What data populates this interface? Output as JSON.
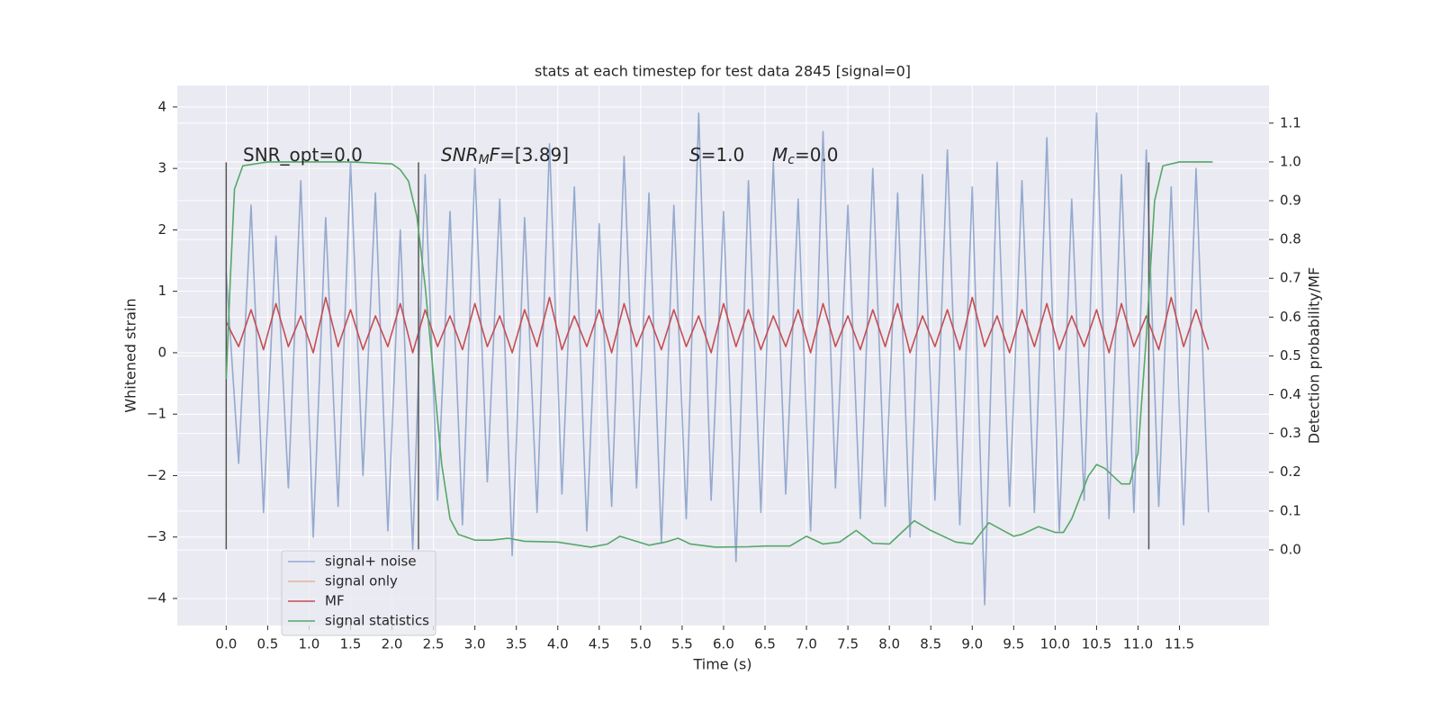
{
  "chart_data": {
    "type": "line",
    "title": "stats at each timestep for test data 2845 [signal=0]",
    "x_label": "Time (s)",
    "y_label": "Whitened strain",
    "y2_label": "Detection probability/MF",
    "xlim": [
      -0.59,
      12.58
    ],
    "ylim": [
      -4.44,
      4.35
    ],
    "y2lim": [
      -0.195,
      1.197
    ],
    "xticks": [
      {
        "value": 0,
        "label": "0.0"
      },
      0.5,
      {
        "value": 1,
        "label": "1.0"
      },
      1.5,
      {
        "value": 2,
        "label": "2.0"
      },
      2.5,
      {
        "value": 3,
        "label": "3.0"
      },
      3.5,
      {
        "value": 4,
        "label": "4.0"
      },
      4.5,
      {
        "value": 5,
        "label": "5.0"
      },
      5.5,
      {
        "value": 6,
        "label": "6.0"
      },
      6.5,
      {
        "value": 7,
        "label": "7.0"
      },
      7.5,
      {
        "value": 8,
        "label": "8.0"
      },
      8.5,
      {
        "value": 9,
        "label": "9.0"
      },
      9.5,
      {
        "value": 10,
        "label": "10.0"
      },
      10.5,
      {
        "value": 11,
        "label": "11.0"
      },
      11.5
    ],
    "yticks": [
      {
        "value": -4,
        "label": "−4"
      },
      {
        "value": -3,
        "label": "−3"
      },
      {
        "value": -2,
        "label": "−2"
      },
      {
        "value": -1,
        "label": "−1"
      },
      0,
      1,
      2,
      3,
      4
    ],
    "y2ticks": [
      {
        "value": 0,
        "label": "0.0"
      },
      0.1,
      0.2,
      0.3,
      0.4,
      0.5,
      0.6,
      0.7,
      0.8,
      0.9,
      {
        "value": 1,
        "label": "1.0"
      },
      1.1
    ],
    "grid": true,
    "legend": "lower left",
    "vlines": [
      0,
      2.32,
      11.13
    ],
    "vline_range": [
      -3.2,
      3.1
    ],
    "vline_color": "#555555",
    "annotations": [
      [
        {
          "text": "SNR_opt=0.0"
        }
      ],
      [
        {
          "text": "SNR",
          "italic": true
        },
        {
          "text": "M",
          "italic": true,
          "sub": true
        },
        {
          "text": "F",
          "italic": true
        },
        {
          "text": "=[3.89]"
        }
      ],
      [
        {
          "text": "S",
          "italic": true
        },
        {
          "text": "=1.0"
        }
      ],
      [
        {
          "text": "M",
          "italic": true
        },
        {
          "text": "c",
          "italic": true,
          "sub": true
        },
        {
          "text": "=0.0"
        }
      ]
    ],
    "x": [
      0,
      0.15,
      0.3,
      0.45,
      0.6,
      0.75,
      0.9,
      1.05,
      1.2,
      1.35,
      1.5,
      1.65,
      1.8,
      1.95,
      2.1,
      2.25,
      2.4,
      2.55,
      2.7,
      2.85,
      3,
      3.15,
      3.3,
      3.45,
      3.6,
      3.75,
      3.9,
      4.05,
      4.2,
      4.35,
      4.5,
      4.65,
      4.8,
      4.95,
      5.1,
      5.25,
      5.4,
      5.55,
      5.7,
      5.85,
      6,
      6.15,
      6.3,
      6.45,
      6.6,
      6.75,
      6.9,
      7.05,
      7.2,
      7.35,
      7.5,
      7.65,
      7.8,
      7.95,
      8.1,
      8.25,
      8.4,
      8.55,
      8.7,
      8.85,
      9,
      9.15,
      9.3,
      9.45,
      9.6,
      9.75,
      9.9,
      10.05,
      10.2,
      10.35,
      10.5,
      10.65,
      10.8,
      10.95,
      11.1,
      11.25,
      11.4,
      11.55,
      11.7,
      11.85
    ],
    "series": [
      {
        "name": "signal+ noise",
        "color": "#4c72b0",
        "alpha": 0.55,
        "values": [
          1.3,
          -1.8,
          2.4,
          -2.6,
          1.9,
          -2.2,
          2.8,
          -3.0,
          2.2,
          -2.5,
          3.1,
          -2.0,
          2.6,
          -2.9,
          2.0,
          -3.2,
          2.9,
          -2.4,
          2.3,
          -2.8,
          3.0,
          -2.1,
          2.5,
          -3.3,
          2.2,
          -2.6,
          3.4,
          -2.3,
          2.7,
          -2.9,
          2.1,
          -2.5,
          3.2,
          -2.2,
          2.6,
          -3.1,
          2.4,
          -2.7,
          3.9,
          -2.4,
          2.3,
          -3.4,
          2.8,
          -2.6,
          3.1,
          -2.3,
          2.5,
          -2.9,
          3.6,
          -2.2,
          2.4,
          -2.7,
          3.0,
          -2.5,
          2.6,
          -3.0,
          2.9,
          -2.4,
          3.3,
          -2.8,
          2.7,
          -4.1,
          3.1,
          -2.5,
          2.8,
          -2.6,
          3.5,
          -2.9,
          2.5,
          -2.4,
          3.9,
          -2.7,
          2.9,
          -2.6,
          3.3,
          -2.5,
          2.7,
          -2.8,
          3.0,
          -2.6
        ]
      },
      {
        "name": "signal only",
        "color": "#dd8452",
        "alpha": 0.55
      },
      {
        "name": "MF",
        "color": "#c44e52",
        "values": [
          0.5,
          0.1,
          0.7,
          0.05,
          0.8,
          0.1,
          0.6,
          0.0,
          0.9,
          0.1,
          0.7,
          0.05,
          0.6,
          0.1,
          0.8,
          0.0,
          0.7,
          0.1,
          0.6,
          0.05,
          0.8,
          0.1,
          0.6,
          0.0,
          0.7,
          0.1,
          0.9,
          0.05,
          0.6,
          0.1,
          0.7,
          0.0,
          0.8,
          0.1,
          0.6,
          0.05,
          0.7,
          0.1,
          0.6,
          0.0,
          0.8,
          0.1,
          0.7,
          0.05,
          0.6,
          0.1,
          0.7,
          0.0,
          0.8,
          0.1,
          0.6,
          0.05,
          0.7,
          0.1,
          0.8,
          0.0,
          0.6,
          0.1,
          0.7,
          0.05,
          0.9,
          0.1,
          0.6,
          0.0,
          0.7,
          0.1,
          0.8,
          0.05,
          0.6,
          0.1,
          0.7,
          0.0,
          0.8,
          0.1,
          0.6,
          0.05,
          0.9,
          0.1,
          0.7,
          0.05
        ]
      },
      {
        "name": "signal statistics",
        "color": "#55a868",
        "axis": "y2",
        "x": [
          0,
          0.05,
          0.1,
          0.2,
          0.5,
          1.0,
          1.5,
          2.0,
          2.1,
          2.2,
          2.3,
          2.4,
          2.5,
          2.6,
          2.7,
          2.8,
          3.0,
          3.2,
          3.4,
          3.6,
          4.0,
          4.4,
          4.6,
          4.75,
          4.9,
          5.1,
          5.3,
          5.45,
          5.6,
          5.9,
          6.3,
          6.5,
          6.8,
          7.0,
          7.2,
          7.4,
          7.6,
          7.8,
          8.0,
          8.3,
          8.5,
          8.8,
          9.0,
          9.2,
          9.5,
          9.6,
          9.8,
          10.0,
          10.1,
          10.2,
          10.4,
          10.5,
          10.6,
          10.8,
          10.9,
          11.0,
          11.1,
          11.2,
          11.3,
          11.5,
          11.9
        ],
        "values": [
          0.44,
          0.7,
          0.93,
          0.99,
          1.0,
          1.0,
          1.0,
          0.995,
          0.98,
          0.95,
          0.86,
          0.68,
          0.45,
          0.22,
          0.08,
          0.04,
          0.025,
          0.025,
          0.03,
          0.022,
          0.02,
          0.007,
          0.015,
          0.035,
          0.025,
          0.012,
          0.02,
          0.03,
          0.015,
          0.007,
          0.008,
          0.01,
          0.01,
          0.035,
          0.015,
          0.02,
          0.05,
          0.017,
          0.015,
          0.075,
          0.05,
          0.02,
          0.015,
          0.07,
          0.035,
          0.04,
          0.06,
          0.045,
          0.045,
          0.08,
          0.19,
          0.22,
          0.21,
          0.17,
          0.17,
          0.25,
          0.55,
          0.9,
          0.99,
          1.0,
          1.0
        ]
      }
    ]
  }
}
